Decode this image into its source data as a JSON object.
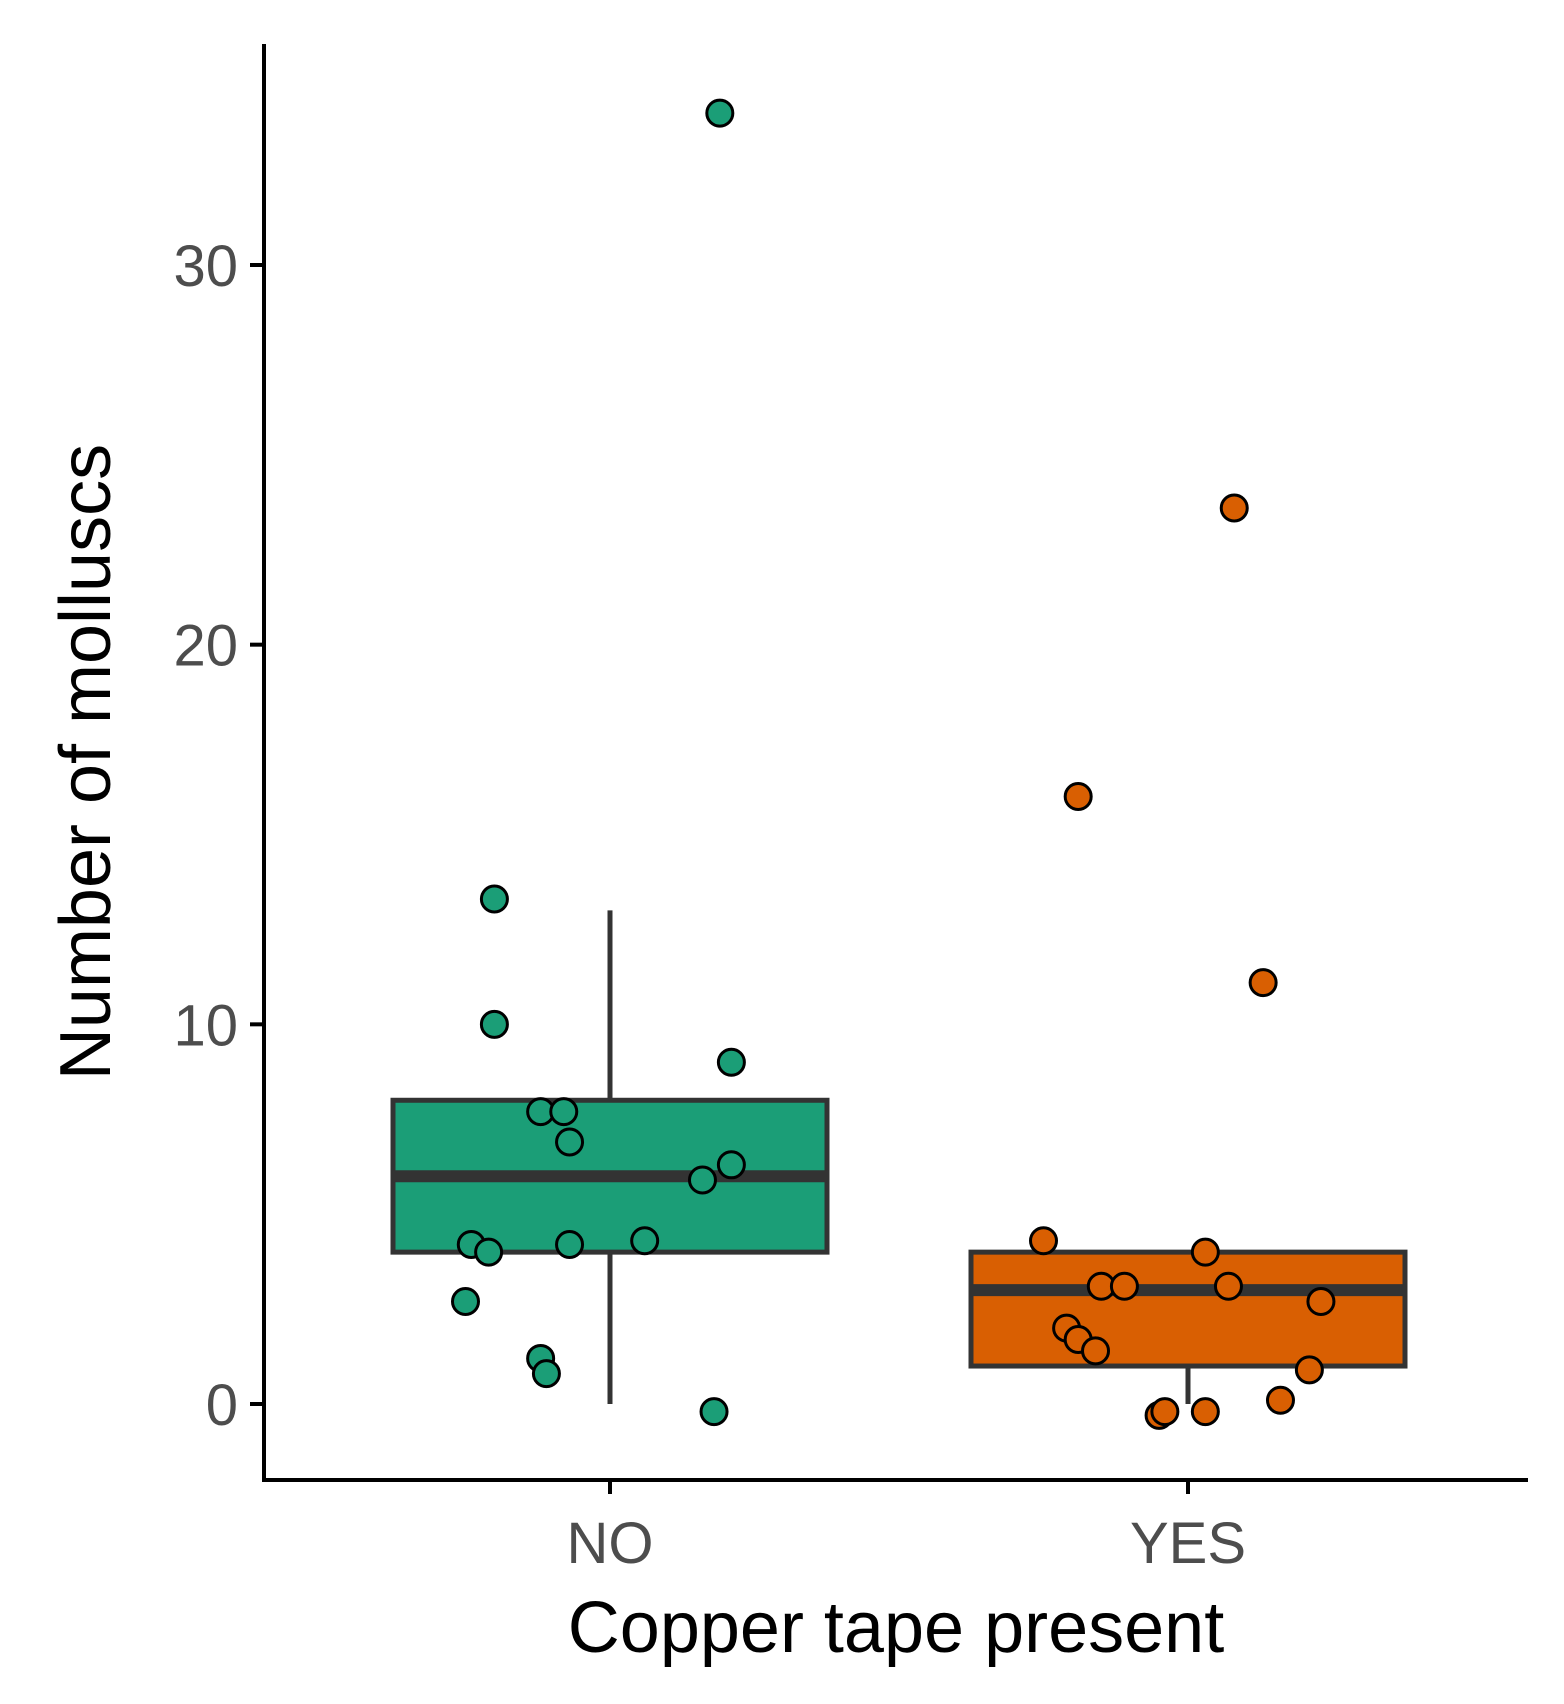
{
  "chart_data": {
    "type": "boxplot",
    "xlabel": "Copper tape present",
    "ylabel": "Number of molluscs",
    "categories": [
      "NO",
      "YES"
    ],
    "ylim": [
      -2,
      36
    ],
    "yticks": [
      0,
      10,
      20,
      30
    ],
    "grid": false,
    "legend": "none",
    "colors": {
      "NO": "#1b9e77",
      "YES": "#d95f02",
      "box_outline": "#333333",
      "axis": "#000000",
      "tick_label": "#4d4d4d"
    },
    "boxes": [
      {
        "category": "NO",
        "q1": 4,
        "median": 6,
        "q3": 8,
        "whisker_low": 0,
        "whisker_high": 13
      },
      {
        "category": "YES",
        "q1": 1,
        "median": 3,
        "q3": 4,
        "whisker_low": 0,
        "whisker_high": 4
      }
    ],
    "points": [
      {
        "category": "NO",
        "x": 1.19,
        "y": 34
      },
      {
        "category": "NO",
        "x": 0.8,
        "y": 13.3
      },
      {
        "category": "NO",
        "x": 0.8,
        "y": 10
      },
      {
        "category": "NO",
        "x": 1.21,
        "y": 9
      },
      {
        "category": "NO",
        "x": 0.88,
        "y": 7.7
      },
      {
        "category": "NO",
        "x": 0.92,
        "y": 7.7
      },
      {
        "category": "NO",
        "x": 0.93,
        "y": 6.9
      },
      {
        "category": "NO",
        "x": 1.21,
        "y": 6.3
      },
      {
        "category": "NO",
        "x": 1.16,
        "y": 5.9
      },
      {
        "category": "NO",
        "x": 0.76,
        "y": 4.2
      },
      {
        "category": "NO",
        "x": 0.79,
        "y": 4.0
      },
      {
        "category": "NO",
        "x": 0.93,
        "y": 4.2
      },
      {
        "category": "NO",
        "x": 1.06,
        "y": 4.3
      },
      {
        "category": "NO",
        "x": 0.75,
        "y": 2.7
      },
      {
        "category": "NO",
        "x": 0.88,
        "y": 1.2
      },
      {
        "category": "NO",
        "x": 0.89,
        "y": 0.8
      },
      {
        "category": "NO",
        "x": 1.18,
        "y": -0.2
      },
      {
        "category": "YES",
        "x": 2.08,
        "y": 23.6
      },
      {
        "category": "YES",
        "x": 1.81,
        "y": 16
      },
      {
        "category": "YES",
        "x": 2.13,
        "y": 11.1
      },
      {
        "category": "YES",
        "x": 1.75,
        "y": 4.3
      },
      {
        "category": "YES",
        "x": 2.03,
        "y": 4.0
      },
      {
        "category": "YES",
        "x": 1.85,
        "y": 3.1
      },
      {
        "category": "YES",
        "x": 1.89,
        "y": 3.1
      },
      {
        "category": "YES",
        "x": 2.07,
        "y": 3.1
      },
      {
        "category": "YES",
        "x": 2.23,
        "y": 2.7
      },
      {
        "category": "YES",
        "x": 1.79,
        "y": 2.0
      },
      {
        "category": "YES",
        "x": 1.81,
        "y": 1.7
      },
      {
        "category": "YES",
        "x": 1.84,
        "y": 1.4
      },
      {
        "category": "YES",
        "x": 2.21,
        "y": 0.9
      },
      {
        "category": "YES",
        "x": 2.16,
        "y": 0.1
      },
      {
        "category": "YES",
        "x": 1.95,
        "y": -0.3
      },
      {
        "category": "YES",
        "x": 1.96,
        "y": -0.2
      },
      {
        "category": "YES",
        "x": 2.03,
        "y": -0.2
      }
    ]
  }
}
